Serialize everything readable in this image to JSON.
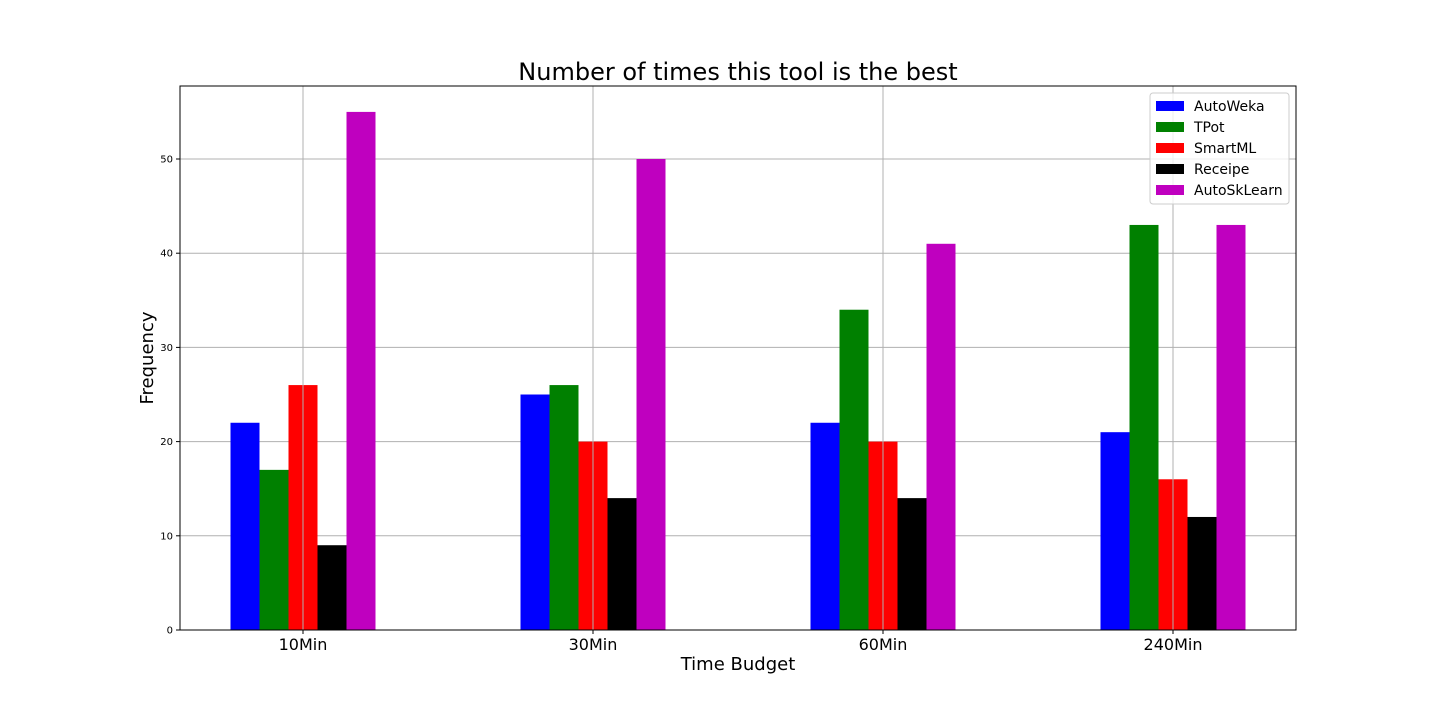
{
  "chart_data": {
    "type": "bar",
    "title": "Number of times this tool is the best",
    "xlabel": "Time Budget",
    "ylabel": "Frequency",
    "categories": [
      "10Min",
      "30Min",
      "60Min",
      "240Min"
    ],
    "yticks": [
      0,
      10,
      20,
      30,
      40,
      50
    ],
    "ylim": [
      0,
      57.75
    ],
    "grid": true,
    "legend_position": "top-right",
    "series": [
      {
        "name": "AutoWeka",
        "color": "#0000ff",
        "values": [
          22,
          25,
          22,
          21
        ]
      },
      {
        "name": "TPot",
        "color": "#008000",
        "values": [
          17,
          26,
          34,
          43
        ]
      },
      {
        "name": "SmartML",
        "color": "#ff0000",
        "values": [
          26,
          20,
          20,
          16
        ]
      },
      {
        "name": "Receipe",
        "color": "#000000",
        "values": [
          9,
          14,
          14,
          12
        ]
      },
      {
        "name": "AutoSkLearn",
        "color": "#bf00bf",
        "values": [
          55,
          50,
          41,
          43
        ]
      }
    ]
  }
}
